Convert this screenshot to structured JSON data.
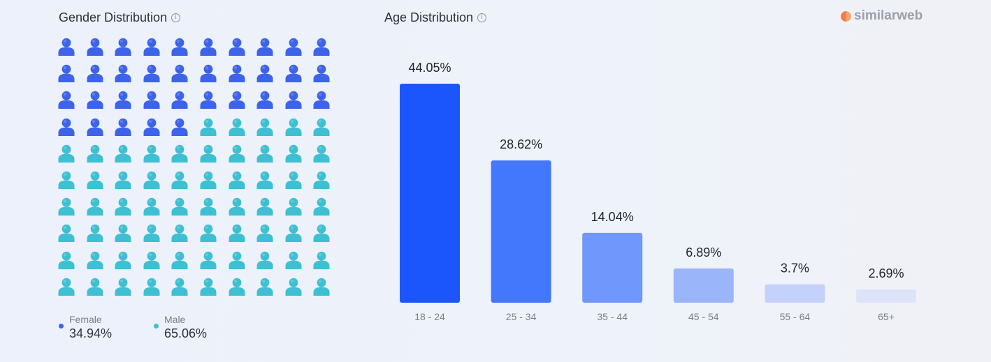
{
  "gender": {
    "title": "Gender Distribution",
    "info_icon": "info-icon",
    "female": {
      "label": "Female",
      "value": "34.94%",
      "color": "#3d63ea"
    },
    "male": {
      "label": "Male",
      "value": "65.06%",
      "color": "#3ec0d2"
    },
    "grid": {
      "total_icons": 100,
      "female_icons": 35,
      "icon": "person-icon"
    }
  },
  "age": {
    "title": "Age Distribution",
    "info_icon": "info-icon"
  },
  "logo": {
    "text": "similarweb",
    "icon": "similarweb-logo-icon"
  },
  "chart_data": [
    {
      "type": "bar",
      "title": "Age Distribution",
      "categories": [
        "18 - 24",
        "25 - 34",
        "35 - 44",
        "45 - 54",
        "55 - 64",
        "65+"
      ],
      "values": [
        44.05,
        28.62,
        14.04,
        6.89,
        3.7,
        2.69
      ],
      "labels": [
        "44.05%",
        "28.62%",
        "14.04%",
        "6.89%",
        "3.7%",
        "2.69%"
      ],
      "colors": [
        "#1a56fb",
        "#4478fc",
        "#7097fb",
        "#9bb5fa",
        "#c4d2fb",
        "#dde4f8"
      ],
      "xlabel": "",
      "ylabel": "",
      "ylim": [
        0,
        44.05
      ],
      "grid": false
    },
    {
      "type": "pie",
      "title": "Gender Distribution",
      "categories": [
        "Female",
        "Male"
      ],
      "values": [
        34.94,
        65.06
      ]
    }
  ]
}
